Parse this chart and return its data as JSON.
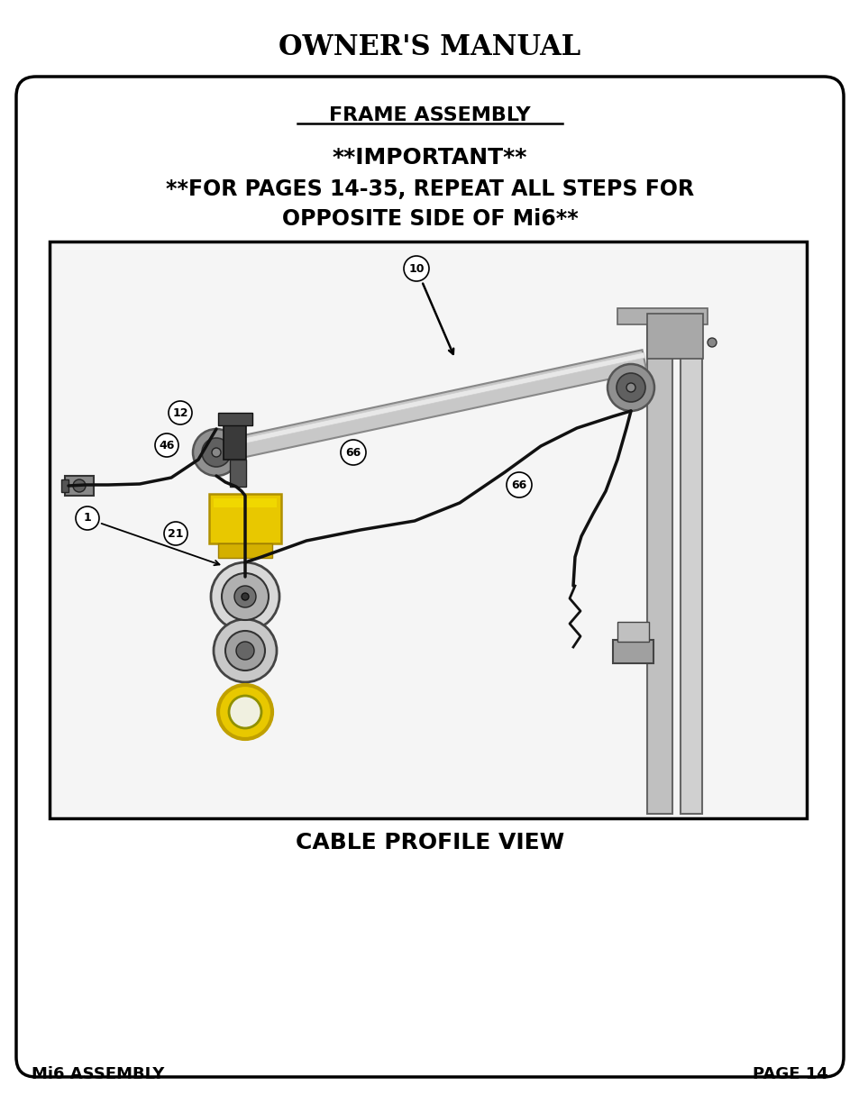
{
  "page_title": "OWNER'S MANUAL",
  "section_title": "FRAME ASSEMBLY",
  "important_line1": "**IMPORTANT**",
  "important_line2": "**FOR PAGES 14-35, REPEAT ALL STEPS FOR",
  "important_line3": "OPPOSITE SIDE OF Mi6**",
  "caption": "CABLE PROFILE VIEW",
  "footer_left": "Mi6 ASSEMBLY",
  "footer_right": "PAGE 14",
  "bg_color": "#ffffff",
  "border_color": "#000000",
  "text_color": "#000000",
  "fig_width": 9.54,
  "fig_height": 12.35
}
